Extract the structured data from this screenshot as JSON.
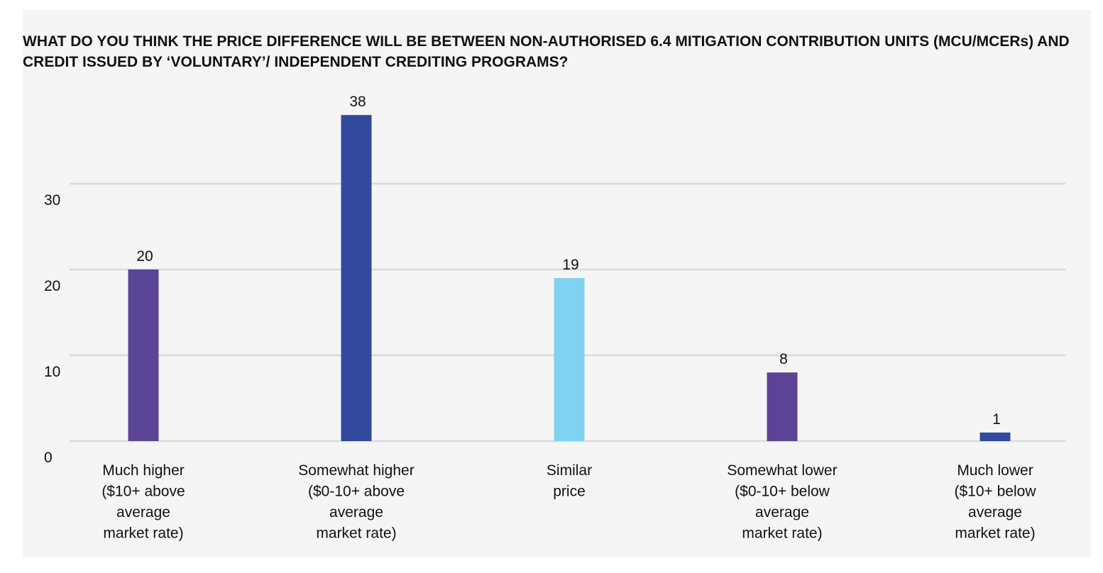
{
  "chart_data": {
    "type": "bar",
    "title": "WHAT DO YOU THINK THE PRICE DIFFERENCE WILL BE BETWEEN NON-AUTHORISED 6.4 MITIGATION CONTRIBUTION UNITS (MCU/MCERs) AND CREDIT ISSUED BY ‘VOLUNTARY’/ INDEPENDENT CREDITING PROGRAMS?",
    "categories": [
      [
        "Much higher",
        "($10+ above",
        "average",
        "market rate)"
      ],
      [
        "Somewhat higher",
        "($0-10+ above",
        "average",
        "market rate)"
      ],
      [
        "Similar",
        "price"
      ],
      [
        "Somewhat lower",
        "($0-10+ below",
        "average",
        "market rate)"
      ],
      [
        "Much lower",
        "($10+ below",
        "average",
        "market rate)"
      ]
    ],
    "values": [
      20,
      38,
      19,
      8,
      1
    ],
    "bar_colors": [
      "#5b4496",
      "#33499b",
      "#80d3f0",
      "#5b4496",
      "#33499b"
    ],
    "y_ticks": [
      0,
      10,
      20,
      30
    ],
    "ylim": [
      0,
      40
    ],
    "grid": true,
    "legend": "none",
    "xlabel": "",
    "ylabel": ""
  }
}
